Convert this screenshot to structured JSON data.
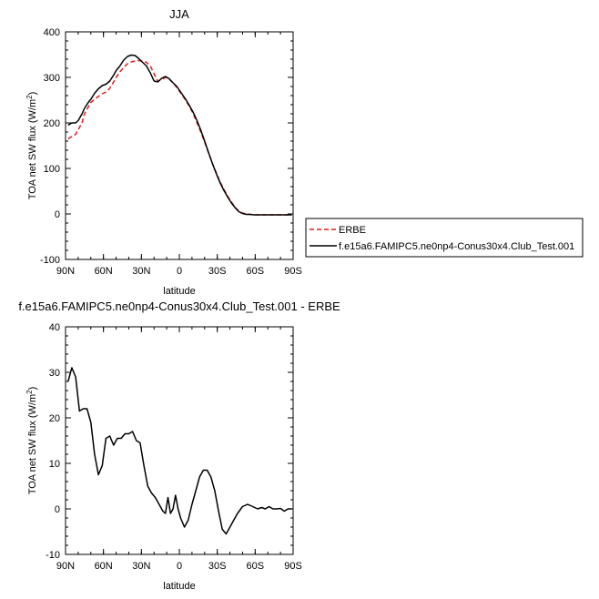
{
  "chart_data": [
    {
      "type": "line",
      "title": "JJA",
      "xlabel": "latitude",
      "ylabel": "TOA net SW flux (W/m²)",
      "ylabel_main": "TOA net SW flux (W/m",
      "ylabel_sup": "2",
      "ylabel_close": ")",
      "xlim": [
        90,
        -90
      ],
      "ylim": [
        -100,
        400
      ],
      "xticks": [
        90,
        60,
        30,
        0,
        -30,
        -60,
        -90
      ],
      "xtick_labels": [
        "90N",
        "60N",
        "30N",
        "0",
        "30S",
        "60S",
        "90S"
      ],
      "yticks": [
        -100,
        0,
        100,
        200,
        300,
        400
      ],
      "ytick_labels": [
        "-100",
        "0",
        "100",
        "200",
        "300",
        "400"
      ],
      "legend": {
        "placement": "right",
        "entries": [
          "ERBE",
          "f.e15a6.FAMIPC5.ne0np4-Conus30x4.Club_Test.001"
        ]
      },
      "series": [
        {
          "name": "ERBE",
          "color": "#e41a1c",
          "dash": "dashed",
          "x": [
            88,
            85,
            82,
            80,
            77,
            75,
            72,
            70,
            67,
            64,
            61,
            58,
            55,
            52,
            50,
            47,
            44,
            41,
            38,
            35,
            32,
            29,
            26,
            23,
            20,
            17,
            14,
            11,
            8,
            5,
            2,
            0,
            -2,
            -5,
            -8,
            -11,
            -14,
            -17,
            -20,
            -23,
            -26,
            -29,
            -32,
            -35,
            -38,
            -41,
            -44,
            -47,
            -50,
            -53,
            -56,
            -59,
            -62,
            -65,
            -68,
            -71,
            -74,
            -77,
            -80,
            -83,
            -86,
            -89
          ],
          "y": [
            165,
            170,
            175,
            185,
            200,
            220,
            235,
            245,
            252,
            258,
            264,
            268,
            276,
            290,
            300,
            312,
            322,
            330,
            334,
            336,
            337,
            336,
            333,
            325,
            308,
            292,
            295,
            300,
            296,
            288,
            278,
            270,
            262,
            250,
            236,
            220,
            200,
            180,
            158,
            135,
            112,
            92,
            72,
            55,
            40,
            27,
            15,
            6,
            2,
            0,
            -1,
            -2,
            -2,
            -2,
            -2,
            -2,
            -2,
            -2,
            -2,
            -2,
            -2,
            -2
          ]
        },
        {
          "name": "f.e15a6.FAMIPC5.ne0np4-Conus30x4.Club_Test.001",
          "color": "#000000",
          "dash": "solid",
          "x": [
            88,
            85,
            82,
            80,
            77,
            75,
            72,
            70,
            67,
            64,
            61,
            58,
            55,
            52,
            50,
            47,
            44,
            41,
            38,
            35,
            32,
            29,
            26,
            23,
            20,
            17,
            14,
            11,
            8,
            5,
            2,
            0,
            -2,
            -5,
            -8,
            -11,
            -14,
            -17,
            -20,
            -23,
            -26,
            -29,
            -32,
            -35,
            -38,
            -41,
            -44,
            -47,
            -50,
            -53,
            -56,
            -59,
            -62,
            -65,
            -68,
            -71,
            -74,
            -77,
            -80,
            -83,
            -86,
            -89
          ],
          "y": [
            195,
            200,
            200,
            205,
            220,
            232,
            245,
            252,
            265,
            275,
            282,
            285,
            292,
            305,
            315,
            325,
            338,
            346,
            349,
            348,
            341,
            333,
            325,
            310,
            292,
            290,
            298,
            302,
            297,
            288,
            280,
            272,
            264,
            252,
            238,
            223,
            205,
            184,
            160,
            136,
            112,
            90,
            70,
            53,
            38,
            25,
            14,
            5,
            1,
            -1,
            -1,
            -2,
            -2,
            -2,
            -2,
            -2,
            -2,
            -2,
            -2,
            -2,
            -2,
            -2
          ]
        }
      ]
    },
    {
      "type": "line",
      "title": "f.e15a6.FAMIPC5.ne0np4-Conus30x4.Club_Test.001 - ERBE",
      "xlabel": "latitude",
      "ylabel": "TOA net SW flux (W/m²)",
      "ylabel_main": "TOA net SW flux (W/m",
      "ylabel_sup": "2",
      "ylabel_close": ")",
      "xlim": [
        90,
        -90
      ],
      "ylim": [
        -10,
        40
      ],
      "xticks": [
        90,
        60,
        30,
        0,
        -30,
        -60,
        -90
      ],
      "xtick_labels": [
        "90N",
        "60N",
        "30N",
        "0",
        "30S",
        "60S",
        "90S"
      ],
      "yticks": [
        -10,
        0,
        10,
        20,
        30,
        40
      ],
      "ytick_labels": [
        "-10",
        "0",
        "10",
        "20",
        "30",
        "40"
      ],
      "series": [
        {
          "name": "f.e15a6.FAMIPC5.ne0np4-Conus30x4.Club_Test.001 - ERBE",
          "color": "#000000",
          "dash": "solid",
          "x": [
            88,
            85,
            82,
            79,
            76,
            73,
            70,
            67,
            64,
            61,
            58,
            55,
            52,
            49,
            46,
            43,
            40,
            37,
            34,
            31,
            28,
            25,
            22,
            19,
            16,
            13,
            11,
            9,
            7,
            5,
            3,
            1,
            -1,
            -4,
            -7,
            -10,
            -13,
            -16,
            -19,
            -22,
            -25,
            -28,
            -31,
            -34,
            -37,
            -40,
            -43,
            -46,
            -50,
            -54,
            -58,
            -62,
            -65,
            -68,
            -71,
            -74,
            -77,
            -80,
            -83,
            -86,
            -89
          ],
          "y": [
            28,
            31,
            29,
            21.5,
            22,
            22,
            19,
            12,
            7.5,
            9.5,
            15.5,
            16,
            14,
            15.5,
            15.5,
            16.5,
            16.5,
            17,
            15,
            14.5,
            9.5,
            5,
            3.5,
            2.5,
            1,
            -0.5,
            -1,
            2.5,
            -1,
            0,
            3,
            0,
            -2,
            -4,
            -2.5,
            1,
            4,
            7,
            8.5,
            8.5,
            7,
            4,
            -0.5,
            -4.5,
            -5.5,
            -4,
            -2.5,
            -1,
            0.5,
            1,
            0.5,
            0,
            0.3,
            0,
            0.5,
            0,
            0,
            0.1,
            -0.5,
            0,
            0
          ]
        }
      ]
    }
  ]
}
